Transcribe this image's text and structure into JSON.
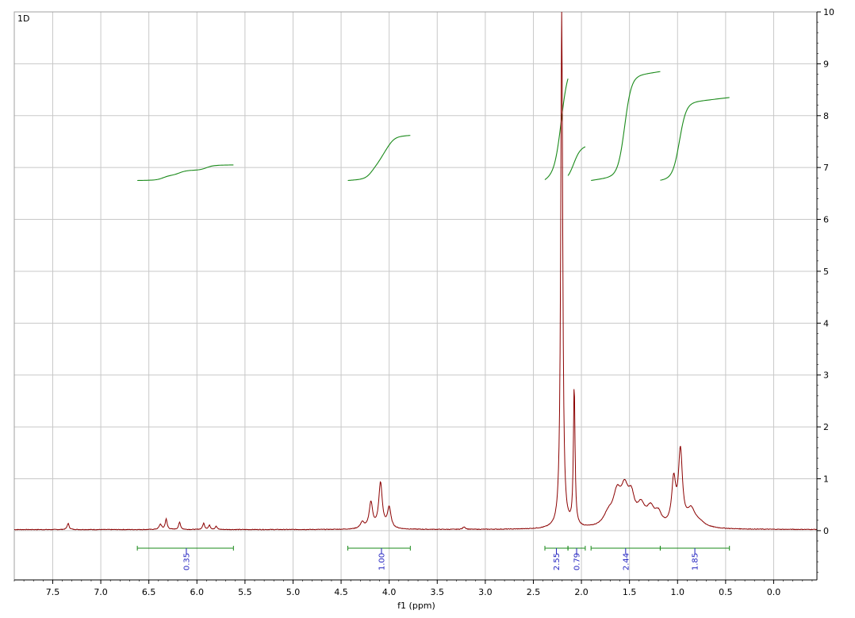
{
  "chart_data": {
    "type": "line",
    "title": "",
    "corner_label": "1D",
    "xlabel": "f1 (ppm)",
    "ylabel": "",
    "x_reversed": true,
    "xlim": [
      7.9,
      -0.45
    ],
    "ylim": [
      -0.95,
      10.0
    ],
    "x_ticks": [
      "7.5",
      "7.0",
      "6.5",
      "6.0",
      "5.5",
      "5.0",
      "4.5",
      "4.0",
      "3.5",
      "3.0",
      "2.5",
      "2.0",
      "1.5",
      "1.0",
      "0.5",
      "0.0"
    ],
    "y_ticks": [
      "0",
      "1",
      "2",
      "3",
      "4",
      "5",
      "6",
      "7",
      "8",
      "9",
      "10"
    ],
    "grid": true,
    "colors": {
      "spectrum": "#8b0000",
      "integral": "#1a8a1a",
      "integral_label": "#1f1fbf",
      "grid": "#c8c8c8"
    },
    "spectrum": {
      "name": "",
      "baseline": 0.02,
      "peaks": [
        {
          "ppm": 7.34,
          "height": 0.12,
          "width": 0.012
        },
        {
          "ppm": 6.38,
          "height": 0.1,
          "width": 0.015
        },
        {
          "ppm": 6.32,
          "height": 0.2,
          "width": 0.012
        },
        {
          "ppm": 6.18,
          "height": 0.14,
          "width": 0.012
        },
        {
          "ppm": 5.93,
          "height": 0.12,
          "width": 0.012
        },
        {
          "ppm": 5.87,
          "height": 0.08,
          "width": 0.012
        },
        {
          "ppm": 5.8,
          "height": 0.06,
          "width": 0.012
        },
        {
          "ppm": 4.28,
          "height": 0.12,
          "width": 0.025
        },
        {
          "ppm": 4.19,
          "height": 0.5,
          "width": 0.022
        },
        {
          "ppm": 4.09,
          "height": 0.88,
          "width": 0.022
        },
        {
          "ppm": 4.0,
          "height": 0.4,
          "width": 0.022
        },
        {
          "ppm": 3.22,
          "height": 0.05,
          "width": 0.015
        },
        {
          "ppm": 2.205,
          "height": 10.2,
          "width": 0.012
        },
        {
          "ppm": 2.075,
          "height": 2.72,
          "width": 0.01
        },
        {
          "ppm": 1.72,
          "height": 0.22,
          "width": 0.06
        },
        {
          "ppm": 1.63,
          "height": 0.55,
          "width": 0.05
        },
        {
          "ppm": 1.55,
          "height": 0.62,
          "width": 0.05
        },
        {
          "ppm": 1.48,
          "height": 0.45,
          "width": 0.04
        },
        {
          "ppm": 1.38,
          "height": 0.35,
          "width": 0.05
        },
        {
          "ppm": 1.28,
          "height": 0.32,
          "width": 0.05
        },
        {
          "ppm": 1.2,
          "height": 0.22,
          "width": 0.04
        },
        {
          "ppm": 1.04,
          "height": 0.85,
          "width": 0.025
        },
        {
          "ppm": 0.97,
          "height": 1.42,
          "width": 0.025
        },
        {
          "ppm": 0.86,
          "height": 0.3,
          "width": 0.05
        },
        {
          "ppm": 0.78,
          "height": 0.1,
          "width": 0.08
        }
      ]
    },
    "integrals": [
      {
        "label": "0.35",
        "from": 6.62,
        "to": 5.62,
        "value_ppm": 6.11,
        "curve_start": 6.75,
        "curve_end": 7.05,
        "steps": [
          6.35,
          6.18,
          5.9
        ]
      },
      {
        "label": "1.00",
        "from": 4.43,
        "to": 3.78,
        "value_ppm": 4.08,
        "curve_start": 6.75,
        "curve_end": 7.62,
        "steps": [
          4.18,
          4.08,
          4.0
        ]
      },
      {
        "label": "2.55",
        "from": 2.38,
        "to": 2.14,
        "value_ppm": 2.26,
        "curve_start": 6.75,
        "curve_end": 8.95,
        "steps": [
          2.21
        ]
      },
      {
        "label": "0.79",
        "from": 2.14,
        "to": 1.96,
        "value_ppm": 2.05,
        "curve_start": 6.75,
        "curve_end": 7.42,
        "steps": [
          2.08
        ]
      },
      {
        "label": "2.44",
        "from": 1.9,
        "to": 1.18,
        "value_ppm": 1.54,
        "curve_start": 6.75,
        "curve_end": 8.85,
        "steps": [
          1.55
        ]
      },
      {
        "label": "1.85",
        "from": 1.18,
        "to": 0.46,
        "value_ppm": 0.82,
        "curve_start": 6.75,
        "curve_end": 8.35,
        "steps": [
          0.98
        ]
      }
    ]
  }
}
